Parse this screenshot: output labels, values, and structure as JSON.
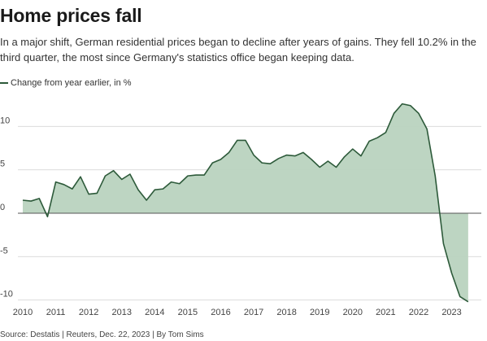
{
  "title": "Home prices fall",
  "subtitle": "In a major shift, German residential prices began to decline after years of gains. They fell 10.2% in the third quarter, the most since Germany's statistics office began keeping data.",
  "legend_label": "Change from year earlier, in %",
  "source": "Source: Destatis | Reuters, Dec. 22, 2023 | By Tom Sims",
  "colors": {
    "line": "#2d5a3a",
    "fill": "#b9d3bf",
    "grid": "#dcdcdc",
    "zero": "#555555"
  },
  "chart_data": {
    "type": "area",
    "ylabel": "",
    "xlabel": "",
    "ylim": [
      -10.5,
      13.5
    ],
    "y_ticks": [
      10,
      5,
      0,
      -5,
      -10
    ],
    "x_ticks": [
      "2010",
      "2011",
      "2012",
      "2013",
      "2014",
      "2015",
      "2016",
      "2017",
      "2018",
      "2019",
      "2020",
      "2021",
      "2022",
      "2023"
    ],
    "xlim": [
      2010.0,
      2023.75
    ],
    "grid": true,
    "legend_position": "top-left",
    "series": [
      {
        "name": "Change from year earlier, in %",
        "x": [
          2010.0,
          2010.25,
          2010.5,
          2010.75,
          2011.0,
          2011.25,
          2011.5,
          2011.75,
          2012.0,
          2012.25,
          2012.5,
          2012.75,
          2013.0,
          2013.25,
          2013.5,
          2013.75,
          2014.0,
          2014.25,
          2014.5,
          2014.75,
          2015.0,
          2015.25,
          2015.5,
          2015.75,
          2016.0,
          2016.25,
          2016.5,
          2016.75,
          2017.0,
          2017.25,
          2017.5,
          2017.75,
          2018.0,
          2018.25,
          2018.5,
          2018.75,
          2019.0,
          2019.25,
          2019.5,
          2019.75,
          2020.0,
          2020.25,
          2020.5,
          2020.75,
          2021.0,
          2021.25,
          2021.5,
          2021.75,
          2022.0,
          2022.25,
          2022.5,
          2022.75,
          2023.0,
          2023.25,
          2023.5
        ],
        "values": [
          1.5,
          1.4,
          1.7,
          -0.4,
          3.6,
          3.3,
          2.8,
          4.2,
          2.2,
          2.3,
          4.3,
          4.9,
          3.9,
          4.5,
          2.7,
          1.5,
          2.7,
          2.8,
          3.6,
          3.4,
          4.3,
          4.4,
          4.4,
          5.8,
          6.2,
          7.0,
          8.4,
          8.4,
          6.7,
          5.8,
          5.7,
          6.3,
          6.7,
          6.6,
          7.0,
          6.2,
          5.3,
          6.0,
          5.3,
          6.5,
          7.4,
          6.6,
          8.3,
          8.7,
          9.3,
          11.5,
          12.6,
          12.4,
          11.5,
          9.7,
          4.3,
          -3.5,
          -6.9,
          -9.6,
          -10.2
        ]
      }
    ]
  }
}
